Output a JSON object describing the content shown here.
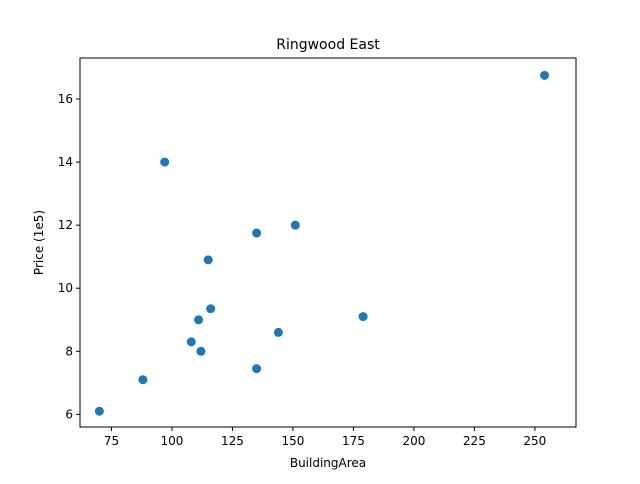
{
  "chart_data": {
    "type": "scatter",
    "title": "Ringwood East",
    "xlabel": "BuildingArea",
    "ylabel": "Price (1e5)",
    "xlim": [
      62,
      267
    ],
    "ylim": [
      5.6,
      17.3
    ],
    "xticks": [
      75,
      100,
      125,
      150,
      175,
      200,
      225,
      250
    ],
    "yticks": [
      6,
      8,
      10,
      12,
      14,
      16
    ],
    "grid": false,
    "marker_color": "#1f77b4",
    "series": [
      {
        "points": [
          {
            "x": 70,
            "y": 6.1
          },
          {
            "x": 88,
            "y": 7.1
          },
          {
            "x": 97,
            "y": 14.0
          },
          {
            "x": 108,
            "y": 8.3
          },
          {
            "x": 111,
            "y": 9.0
          },
          {
            "x": 112,
            "y": 8.0
          },
          {
            "x": 115,
            "y": 10.9
          },
          {
            "x": 116,
            "y": 9.35
          },
          {
            "x": 135,
            "y": 11.75
          },
          {
            "x": 135,
            "y": 7.45
          },
          {
            "x": 144,
            "y": 8.6
          },
          {
            "x": 151,
            "y": 12.0
          },
          {
            "x": 179,
            "y": 9.1
          },
          {
            "x": 254,
            "y": 16.75
          }
        ]
      }
    ]
  }
}
